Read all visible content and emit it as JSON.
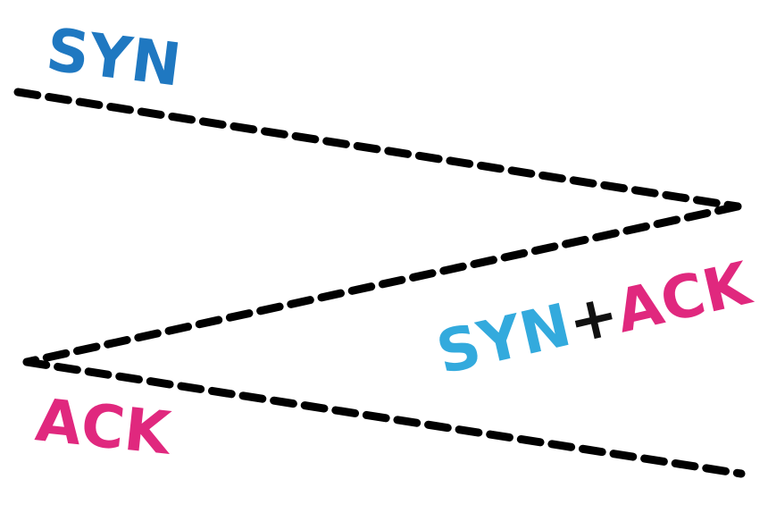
{
  "diagram": {
    "type": "tcp-three-way-handshake",
    "line_color": "#000000",
    "labels": {
      "syn": {
        "text": "SYN",
        "color": "#1f78c1"
      },
      "synack_syn": {
        "text": "SYN",
        "color": "#33aadd"
      },
      "synack_plus": {
        "text": "+",
        "color": "#111111"
      },
      "synack_ack": {
        "text": "ACK",
        "color": "#e0287e"
      },
      "ack": {
        "text": "ACK",
        "color": "#e0287e"
      }
    }
  }
}
